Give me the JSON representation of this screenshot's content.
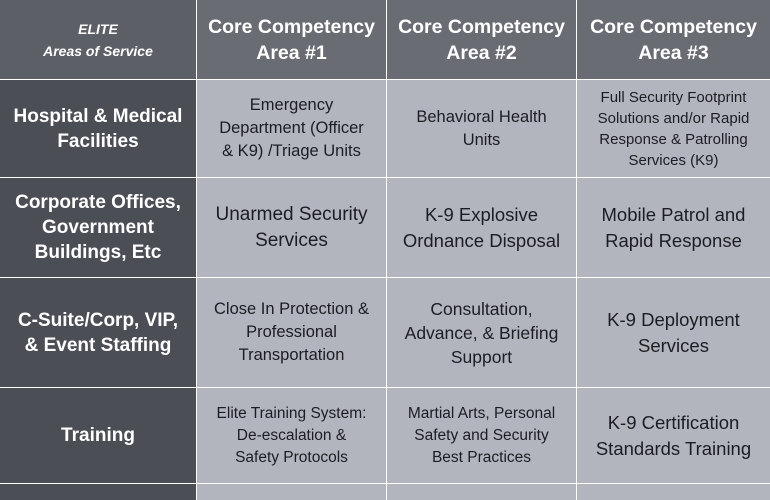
{
  "corner": {
    "line1": "ELITE",
    "line2": "Areas of Service"
  },
  "columns": [
    "Core Competency\nArea #1",
    "Core Competency\nArea #2",
    "Core Competency\nArea #3"
  ],
  "rows": [
    {
      "label": "Hospital & Medical\nFacilities",
      "cells": [
        "Emergency\nDepartment (Officer\n& K9) /Triage Units",
        "Behavioral Health\nUnits",
        "Full Security Footprint\nSolutions and/or Rapid\nResponse & Patrolling\nServices (K9)"
      ]
    },
    {
      "label": "Corporate Offices,\nGovernment\nBuildings, Etc",
      "cells": [
        "Unarmed Security\nServices",
        "K-9 Explosive\nOrdnance Disposal",
        "Mobile Patrol and\nRapid Response"
      ]
    },
    {
      "label": "C-Suite/Corp, VIP,\n& Event Staffing",
      "cells": [
        "Close In Protection &\nProfessional\nTransportation",
        "Consultation,\nAdvance, & Briefing\nSupport",
        "K-9 Deployment\nServices"
      ]
    },
    {
      "label": "Training",
      "cells": [
        "Elite Training System:\nDe-escalation &\nSafety Protocols",
        "Martial Arts, Personal\nSafety and Security\nBest Practices",
        "K-9 Certification\nStandards Training"
      ]
    }
  ]
}
